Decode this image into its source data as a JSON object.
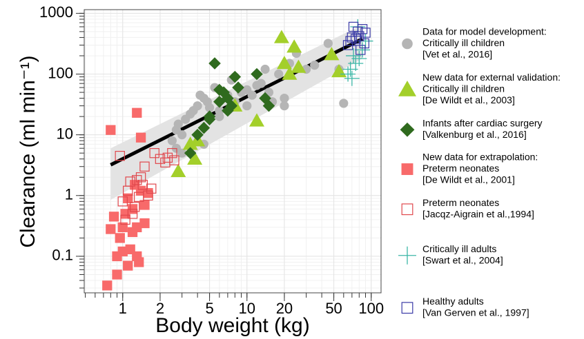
{
  "chart_data": {
    "type": "scatter",
    "xlabel": "Body weight (kg)",
    "ylabel": "Clearance (ml min⁻¹)",
    "xscale": "log",
    "yscale": "log",
    "grid": true,
    "xlim": [
      0.49,
      120
    ],
    "ylim": [
      0.025,
      1150
    ],
    "xticks": [
      1,
      2,
      5,
      10,
      20,
      50,
      100
    ],
    "yticks": [
      0.1,
      1,
      10,
      100,
      1000
    ],
    "band": {
      "color": "#e3e3e3",
      "x": [
        0.8,
        85
      ],
      "lower": [
        0.85,
        180
      ],
      "upper": [
        6,
        650
      ]
    },
    "fit": {
      "color": "#000000",
      "x": [
        0.8,
        85
      ],
      "y": [
        3.2,
        380
      ]
    },
    "series": [
      {
        "heading": "Data for model development:",
        "name": "Critically ill children",
        "reference": "[Vet et al., 2016]",
        "color": "#b5b5b5",
        "marker": "circle",
        "x": [
          2.5,
          2.7,
          2.8,
          3,
          3.2,
          3.5,
          3.7,
          4,
          4.2,
          4.5,
          4.8,
          5,
          5.5,
          6,
          7,
          7.5,
          8,
          9,
          10,
          11,
          12,
          14,
          15,
          16,
          18,
          20,
          20,
          22,
          25,
          30,
          35,
          45,
          55,
          60,
          3,
          2.7,
          4.5,
          6,
          10,
          13,
          8
        ],
        "y": [
          8,
          12,
          15,
          10,
          18,
          22,
          25,
          30,
          45,
          40,
          35,
          28,
          60,
          25,
          45,
          80,
          35,
          50,
          55,
          45,
          65,
          120,
          50,
          35,
          100,
          40,
          30,
          150,
          220,
          120,
          140,
          320,
          120,
          33,
          5,
          6,
          7,
          20,
          30,
          70,
          90
        ]
      },
      {
        "heading": "New data for external validation:",
        "name": "Critically ill children",
        "reference": "[De Wildt et al., 2003]",
        "color": "#a3cf2a",
        "marker": "triangle",
        "x": [
          2.8,
          3.5,
          3.8,
          4,
          8,
          12,
          19,
          20,
          22,
          24,
          26,
          48,
          55
        ],
        "y": [
          2.5,
          7,
          4,
          8,
          30,
          17,
          400,
          150,
          100,
          280,
          130,
          210,
          110
        ]
      },
      {
        "name": "Infants after cardiac surgery",
        "reference": "[Valkenburg et al., 2016]",
        "color": "#2f6a1e",
        "marker": "diamond",
        "x": [
          3.5,
          4,
          4.5,
          5,
          5.5,
          6,
          6.5,
          7,
          7,
          7.5,
          8,
          8.5,
          12,
          14,
          15,
          5,
          6
        ],
        "y": [
          5,
          10,
          13,
          20,
          150,
          55,
          50,
          40,
          25,
          30,
          90,
          60,
          100,
          40,
          30,
          18,
          35
        ]
      },
      {
        "heading": "New data for extrapolation:",
        "name": "Preterm neonates",
        "reference": "[De Wildt et al., 2001]",
        "color": "#f86a6a",
        "marker": "square",
        "x": [
          0.75,
          0.8,
          0.8,
          0.85,
          0.9,
          0.9,
          0.95,
          1,
          1,
          1.05,
          1.1,
          1.1,
          1.15,
          1.2,
          1.25,
          1.3,
          1.3,
          1.35,
          1.4,
          1.4,
          1.5,
          1.5,
          1.6,
          1.2,
          1.3
        ],
        "y": [
          0.033,
          12,
          0.28,
          0.45,
          0.1,
          0.05,
          0.2,
          0.12,
          0.3,
          0.5,
          0.9,
          0.07,
          0.13,
          0.6,
          1.5,
          23,
          0.1,
          0.08,
          9,
          1.2,
          0.35,
          0.7,
          1.1,
          0.25,
          0.3
        ]
      },
      {
        "name": "Preterm neonates",
        "reference": "[Jacqz-Aigrain et al.,1994]",
        "color": "#e0474c",
        "marker": "square-open",
        "x": [
          0.95,
          1,
          1.05,
          1.1,
          1.15,
          1.2,
          1.3,
          1.4,
          1.45,
          1.5,
          1.7,
          1.8,
          2,
          2.2,
          2.3,
          2.5,
          2.6,
          1.6,
          1.25,
          1.35
        ],
        "y": [
          4.5,
          0.8,
          0.4,
          1.2,
          1.7,
          0.5,
          1.8,
          2,
          1.5,
          3,
          1.3,
          5,
          4,
          3.5,
          4.2,
          5,
          3.8,
          1,
          0.65,
          0.95
        ]
      },
      {
        "name": "Critically ill adults",
        "reference": "[Swart et al., 2004]",
        "color": "#3cb6a6",
        "marker": "plus",
        "x": [
          65,
          70,
          72,
          75,
          80,
          85,
          78,
          90,
          68
        ],
        "y": [
          100,
          85,
          200,
          150,
          180,
          250,
          600,
          350,
          120
        ]
      },
      {
        "name": "Healthy adults",
        "reference": "[Van Gerven et al., 1997]",
        "color": "#3838a6",
        "marker": "square-open",
        "x": [
          65,
          70,
          72,
          75,
          78,
          80,
          85,
          90,
          68,
          82,
          88
        ],
        "y": [
          300,
          400,
          600,
          380,
          500,
          420,
          550,
          480,
          350,
          250,
          320
        ]
      }
    ]
  }
}
